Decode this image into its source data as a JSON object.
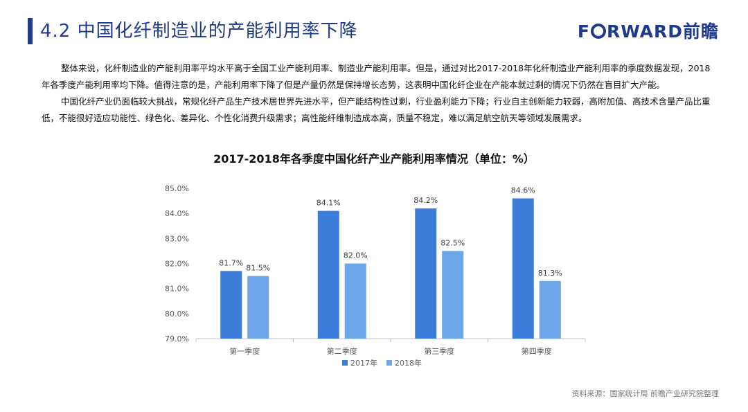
{
  "header": {
    "title": "4.2 中国化纤制造业的产能利用率下降",
    "brand_text_pre": "F",
    "brand_text_post": "RWARD前瞻"
  },
  "body": {
    "paragraph1": "整体来说，化纤制造业的产能利用率平均水平高于全国工业产能利用率、制造业产能利用率。但是，通过对比2017-2018年化纤制造业产能利用率的季度数据发现，2018年各季度产能利用率均下降。值得注意的是，产能利用率下降了但是产量仍然是保持增长态势，这表明中国化纤企业在产能本就过剩的情况下仍然在盲目扩大产能。",
    "paragraph2": "中国化纤产业仍面临较大挑战，常规化纤产品生产技术居世界先进水平，但产能结构性过剩，行业盈利能力下降；行业自主创新能力较弱，高附加值、高技术含量产品比重低，不能很好适应功能性、绿色化、差异化、个性化消费升级需求；高性能纤维制造成本高，质量不稳定，难以满足航空航天等领域发展需求。"
  },
  "chart_data": {
    "type": "bar",
    "title": "2017-2018年各季度中国化纤产业产能利用率情况（单位：%）",
    "categories": [
      "第一季度",
      "第二季度",
      "第三季度",
      "第四季度"
    ],
    "series": [
      {
        "name": "2017年",
        "values": [
          81.7,
          84.1,
          84.2,
          84.6
        ],
        "labels": [
          "81.7%",
          "84.1%",
          "84.2%",
          "84.6%"
        ],
        "color": "#3b7dd8"
      },
      {
        "name": "2018年",
        "values": [
          81.5,
          82.0,
          82.5,
          81.3
        ],
        "labels": [
          "81.5%",
          "82.0%",
          "82.5%",
          "81.3%"
        ],
        "color": "#6ea6ea"
      }
    ],
    "ylim": [
      79.0,
      85.0
    ],
    "yticks": [
      {
        "value": 79.0,
        "label": "79.0%"
      },
      {
        "value": 80.0,
        "label": "80.0%"
      },
      {
        "value": 81.0,
        "label": "81.0%"
      },
      {
        "value": 82.0,
        "label": "82.0%"
      },
      {
        "value": 83.0,
        "label": "83.0%"
      },
      {
        "value": 84.0,
        "label": "84.0%"
      },
      {
        "value": 85.0,
        "label": "85.0%"
      }
    ],
    "grid": false,
    "legend_position": "bottom-center"
  },
  "footer": {
    "source": "资料来源：国家统计局 前瞻产业研究院整理"
  },
  "colors": {
    "brand": "#1f3a8a",
    "axis": "#bfbfbf",
    "tick_text": "#595959"
  }
}
